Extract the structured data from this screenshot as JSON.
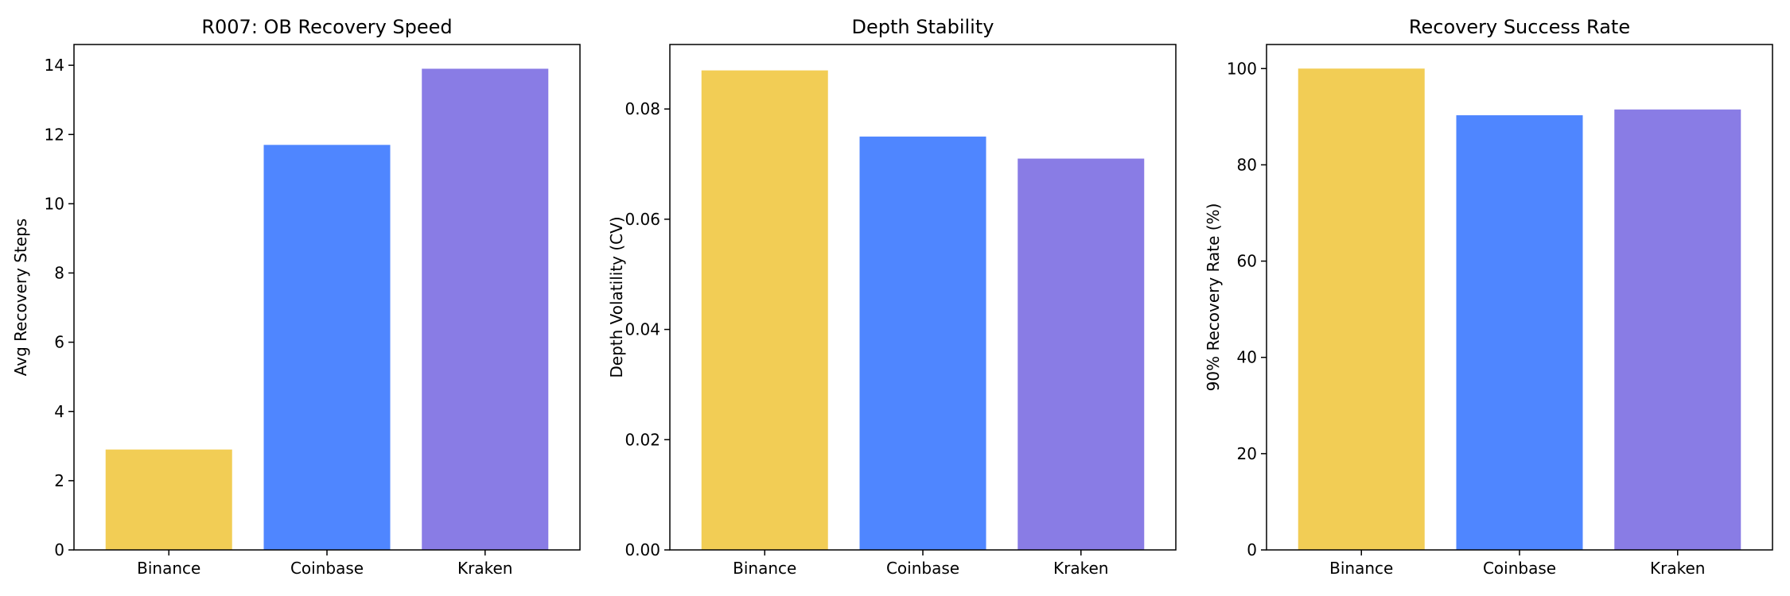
{
  "chart_data": [
    {
      "type": "bar",
      "title": "R007: OB Recovery Speed",
      "xlabel": "",
      "ylabel": "Avg Recovery Steps",
      "categories": [
        "Binance",
        "Coinbase",
        "Kraken"
      ],
      "values": [
        2.9,
        11.7,
        13.9
      ],
      "colors": [
        "#f2cd55",
        "#4f86ff",
        "#897ce5"
      ],
      "ylim": [
        0,
        14.6
      ],
      "yticks": [
        0,
        2,
        4,
        6,
        8,
        10,
        12,
        14
      ],
      "ytick_labels": [
        "0",
        "2",
        "4",
        "6",
        "8",
        "10",
        "12",
        "14"
      ],
      "grid": false,
      "legend": false
    },
    {
      "type": "bar",
      "title": "Depth Stability",
      "xlabel": "",
      "ylabel": "Depth Volatility (CV)",
      "categories": [
        "Binance",
        "Coinbase",
        "Kraken"
      ],
      "values": [
        0.087,
        0.075,
        0.071
      ],
      "colors": [
        "#f2cd55",
        "#4f86ff",
        "#897ce5"
      ],
      "ylim": [
        0,
        0.0917
      ],
      "yticks": [
        0,
        0.02,
        0.04,
        0.06,
        0.08
      ],
      "ytick_labels": [
        "0.00",
        "0.02",
        "0.04",
        "0.06",
        "0.08"
      ],
      "grid": false,
      "legend": false
    },
    {
      "type": "bar",
      "title": "Recovery Success Rate",
      "xlabel": "",
      "ylabel": "90% Recovery Rate (%)",
      "categories": [
        "Binance",
        "Coinbase",
        "Kraken"
      ],
      "values": [
        100,
        90.3,
        91.5
      ],
      "colors": [
        "#f2cd55",
        "#4f86ff",
        "#897ce5"
      ],
      "ylim": [
        0,
        105
      ],
      "yticks": [
        0,
        20,
        40,
        60,
        80,
        100
      ],
      "ytick_labels": [
        "0",
        "20",
        "40",
        "60",
        "80",
        "100"
      ],
      "grid": false,
      "legend": false
    }
  ]
}
